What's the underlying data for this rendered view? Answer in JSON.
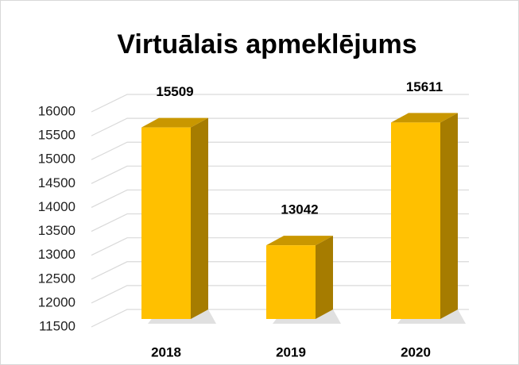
{
  "chart_data": {
    "type": "bar3d",
    "title": "Virtuālais apmeklējums",
    "categories": [
      "2018",
      "2019",
      "2020"
    ],
    "values": [
      15509,
      13042,
      15611
    ],
    "color": "#ffc000",
    "ylim": [
      11500,
      16000
    ],
    "yticks": [
      11500,
      12000,
      12500,
      13000,
      13500,
      14000,
      14500,
      15000,
      15500,
      16000
    ],
    "grid": true
  }
}
